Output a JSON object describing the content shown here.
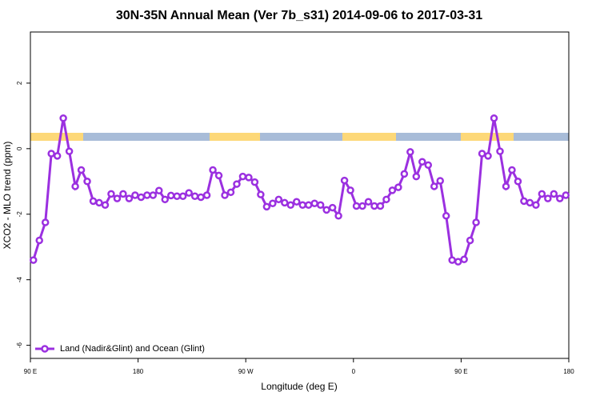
{
  "chart_data": {
    "type": "line",
    "title": "30N-35N Annual Mean (Ver 7b_s31)   2014-09-06 to 2017-03-31",
    "x_label": "Longitude (deg E)",
    "y_label": "XCO2 - MLO trend (ppm)",
    "xlim": [
      90,
      540
    ],
    "ylim": [
      -6.4,
      3.56
    ],
    "xticks": [
      {
        "value": 90,
        "label": "90 E"
      },
      180,
      {
        "value": 270,
        "label": "90 W"
      },
      {
        "value": 360,
        "label": "0"
      },
      {
        "value": 450,
        "label": "90 E"
      },
      {
        "value": 540,
        "label": "180"
      }
    ],
    "yticks": [
      2,
      0,
      -2,
      -4,
      -6
    ],
    "legend": "bottom-left",
    "x": [
      92.5,
      97.5,
      102.5,
      107.5,
      112.5,
      117.5,
      122.5,
      127.5,
      132.5,
      137.5,
      142.5,
      147.5,
      152.5,
      157.5,
      162.5,
      167.5,
      172.5,
      177.5,
      182.5,
      187.5,
      192.5,
      197.5,
      202.5,
      207.5,
      212.5,
      217.5,
      222.5,
      227.5,
      232.5,
      237.5,
      242.5,
      247.5,
      252.5,
      257.5,
      262.5,
      267.5,
      272.5,
      277.5,
      282.5,
      287.5,
      292.5,
      297.5,
      302.5,
      307.5,
      312.5,
      317.5,
      322.5,
      327.5,
      332.5,
      337.5,
      342.5,
      347.5,
      352.5,
      357.5,
      362.5,
      367.5,
      372.5,
      377.5,
      382.5,
      387.5,
      392.5,
      397.5,
      402.5,
      407.5,
      412.5,
      417.5,
      422.5,
      427.5,
      432.5,
      437.5,
      442.5,
      447.5,
      452.5,
      457.5,
      462.5,
      467.5,
      472.5,
      477.5,
      482.5,
      487.5,
      492.5,
      497.5,
      502.5,
      507.5,
      512.5,
      517.5,
      522.5,
      527.5,
      532.5,
      537.5
    ],
    "series": [
      {
        "name": "Land (Nadir&Glint) and Ocean (Glint)",
        "color": "#9b30e0",
        "values": [
          -3.4,
          -2.8,
          -2.25,
          -0.15,
          -0.22,
          0.93,
          -0.08,
          -1.15,
          -0.65,
          -1.0,
          -1.6,
          -1.65,
          -1.72,
          -1.38,
          -1.52,
          -1.38,
          -1.52,
          -1.42,
          -1.48,
          -1.42,
          -1.42,
          -1.28,
          -1.55,
          -1.43,
          -1.45,
          -1.45,
          -1.35,
          -1.45,
          -1.48,
          -1.42,
          -0.65,
          -0.82,
          -1.42,
          -1.33,
          -1.08,
          -0.85,
          -0.88,
          -1.02,
          -1.4,
          -1.77,
          -1.67,
          -1.55,
          -1.65,
          -1.72,
          -1.62,
          -1.72,
          -1.72,
          -1.67,
          -1.72,
          -1.87,
          -1.8,
          -2.05,
          -0.97,
          -1.27,
          -1.75,
          -1.75,
          -1.62,
          -1.75,
          -1.75,
          -1.55,
          -1.27,
          -1.18,
          -0.77,
          -0.1,
          -0.85,
          -0.4,
          -0.5,
          -1.15,
          -0.98,
          -2.05,
          -3.4,
          -3.45,
          -3.38,
          -2.8,
          -2.25,
          -0.15,
          -0.22,
          0.93,
          -0.08,
          -1.15,
          -0.65,
          -1.0,
          -1.6,
          -1.65,
          -1.72,
          -1.38,
          -1.52,
          -1.38,
          -1.52,
          -1.42
        ]
      }
    ]
  }
}
